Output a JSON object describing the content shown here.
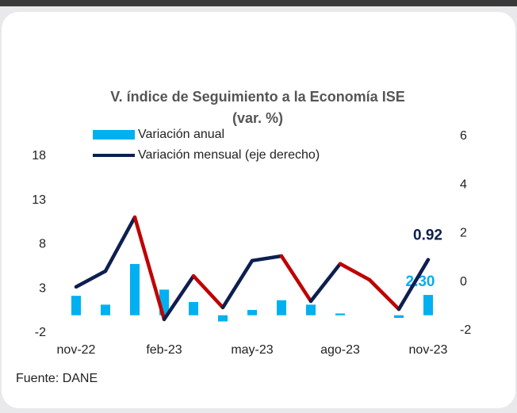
{
  "chart_data": {
    "type": "bar_line",
    "title": "V. índice de Seguimiento a la Economía ISE",
    "subtitle": "(var. %)",
    "categories": [
      "nov-22",
      null,
      null,
      "feb-23",
      null,
      null,
      "may-23",
      null,
      null,
      "ago-23",
      null,
      null,
      "nov-23"
    ],
    "series": [
      {
        "name": "Variación anual",
        "type": "bar",
        "color": "#00b0f0",
        "values": [
          2.2,
          1.2,
          5.8,
          2.9,
          1.5,
          -0.7,
          0.6,
          1.7,
          1.2,
          0.2,
          0,
          -0.3,
          2.3
        ],
        "value_labels": [
          null,
          null,
          null,
          null,
          null,
          null,
          null,
          null,
          null,
          null,
          null,
          null,
          "2.30"
        ]
      },
      {
        "name": "Variación mensual (eje derecho)",
        "type": "line",
        "axis": "y2",
        "color": "#0d1f4f",
        "down_color": "#c00000",
        "values": [
          -0.2,
          0.45,
          2.67,
          -1.54,
          0.25,
          -1.05,
          0.88,
          1.07,
          -0.79,
          0.75,
          0.09,
          -1.12,
          0.92
        ],
        "value_labels": [
          null,
          null,
          null,
          null,
          null,
          null,
          null,
          null,
          null,
          null,
          null,
          null,
          "0.92"
        ]
      }
    ],
    "ylim": [
      -2,
      18
    ],
    "yticks": [
      -2,
      3,
      8,
      13,
      18
    ],
    "y2lim": [
      -2,
      6
    ],
    "y2ticks": [
      -2,
      0,
      2,
      4,
      6
    ],
    "source": "Fuente: DANE"
  }
}
